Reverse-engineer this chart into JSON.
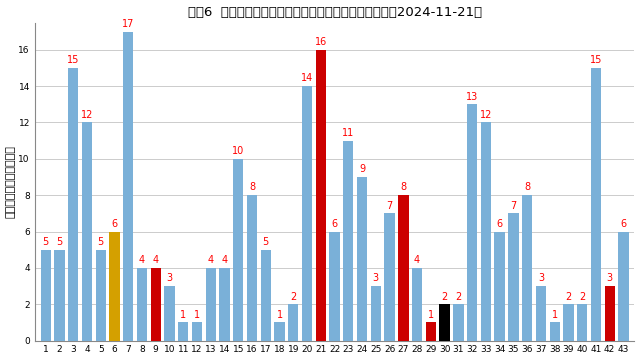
{
  "title": "ロト6  抽選時点での全ての数字の出現間隔値（抽選日：2024-11-21）",
  "ylabel": "最後の出現からの回季数",
  "vals": [
    5,
    5,
    15,
    12,
    5,
    6,
    17,
    4,
    4,
    3,
    1,
    1,
    4,
    4,
    10,
    8,
    5,
    1,
    2,
    14,
    16,
    6,
    11,
    9,
    3,
    7,
    8,
    4,
    1,
    2,
    2,
    13,
    12,
    6,
    7,
    8,
    3,
    1,
    2,
    2,
    15,
    3,
    6
  ],
  "bar_colors_str": [
    "blue",
    "blue",
    "blue",
    "blue",
    "blue",
    "gold",
    "blue",
    "blue",
    "red",
    "blue",
    "blue",
    "blue",
    "blue",
    "blue",
    "blue",
    "blue",
    "blue",
    "blue",
    "blue",
    "blue",
    "red",
    "blue",
    "blue",
    "blue",
    "blue",
    "blue",
    "red",
    "blue",
    "red",
    "black",
    "blue",
    "blue",
    "blue",
    "blue",
    "blue",
    "blue",
    "blue",
    "blue",
    "blue",
    "blue",
    "blue",
    "red",
    "blue"
  ],
  "ylim": [
    0,
    17.5
  ],
  "yticks": [
    0,
    2,
    4,
    6,
    8,
    10,
    12,
    14,
    16
  ],
  "bg_color": "#ffffff",
  "bar_color_blue": "#7ab0d8",
  "bar_color_red": "#cc0000",
  "bar_color_gold": "#d4a000",
  "bar_color_black": "#000000",
  "label_color": "#ff0000",
  "label_fontsize": 7.0,
  "title_fontsize": 9.5,
  "tick_fontsize": 6.5,
  "ylabel_fontsize": 8.0
}
